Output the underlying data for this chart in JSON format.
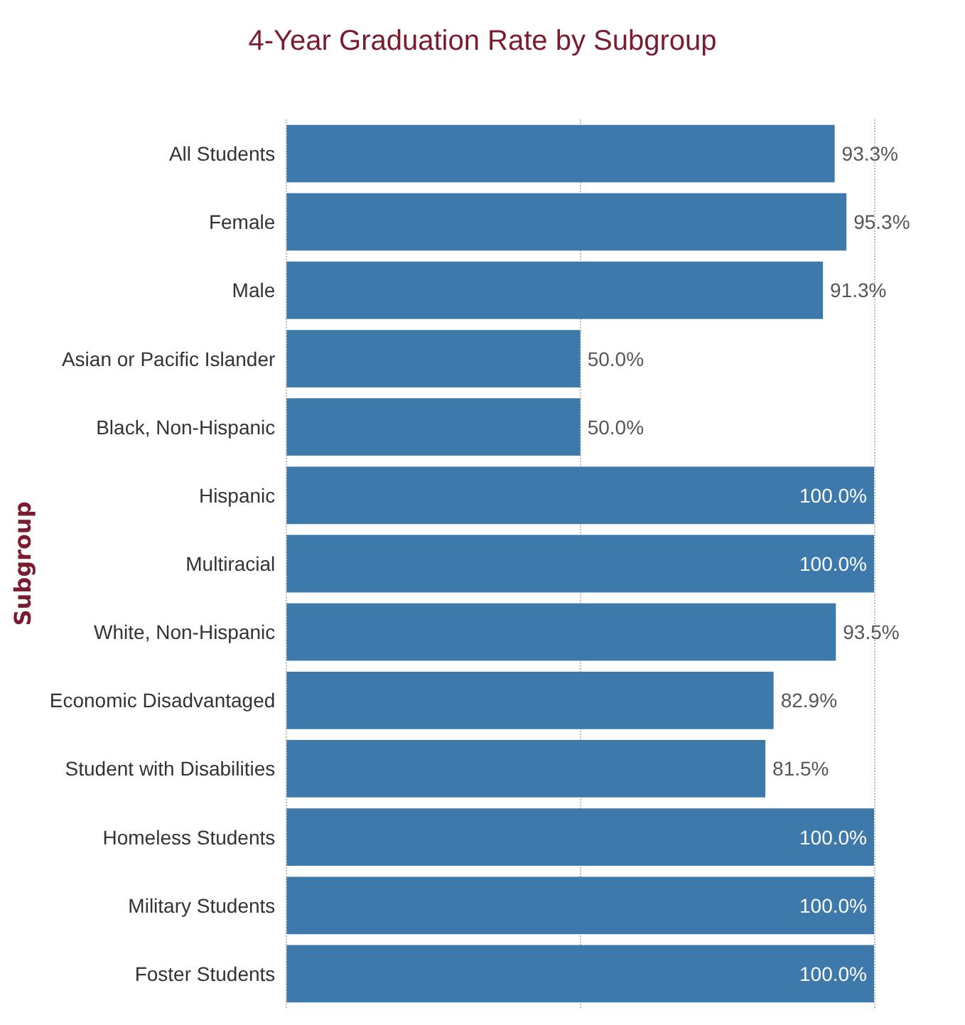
{
  "chart_data": {
    "type": "bar",
    "orientation": "horizontal",
    "title": "4-Year Graduation Rate by Subgroup",
    "ylabel": "Subgroup",
    "categories": [
      "All Students",
      "Female",
      "Male",
      "Asian or Pacific Islander",
      "Black, Non-Hispanic",
      "Hispanic",
      "Multiracial",
      "White, Non-Hispanic",
      "Economic Disadvantaged",
      "Student with Disabilities",
      "Homeless Students",
      "Military Students",
      "Foster Students"
    ],
    "values": [
      93.3,
      95.3,
      91.3,
      50.0,
      50.0,
      100.0,
      100.0,
      93.5,
      82.9,
      81.5,
      100.0,
      100.0,
      100.0
    ],
    "value_labels": [
      "93.3%",
      "95.3%",
      "91.3%",
      "50.0%",
      "50.0%",
      "100.0%",
      "100.0%",
      "93.5%",
      "82.9%",
      "81.5%",
      "100.0%",
      "100.0%",
      "100.0%"
    ],
    "color": "#3d7aab",
    "xlim": [
      0,
      100
    ],
    "xticks": [
      {
        "value": 0,
        "label": null
      },
      {
        "value": 50,
        "label": null
      },
      {
        "value": 100,
        "label": null
      }
    ],
    "grid": "x",
    "tick_labels": "y"
  }
}
